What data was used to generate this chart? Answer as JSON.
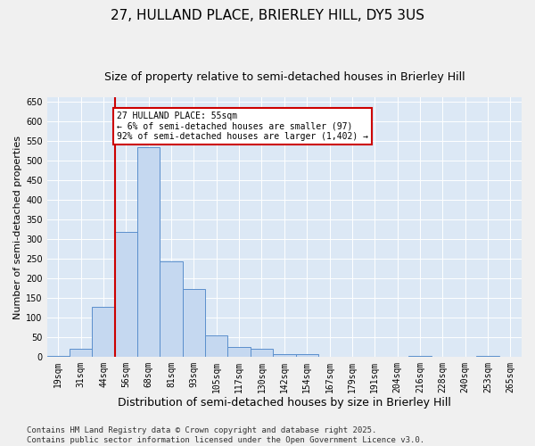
{
  "title1": "27, HULLAND PLACE, BRIERLEY HILL, DY5 3US",
  "title2": "Size of property relative to semi-detached houses in Brierley Hill",
  "xlabel": "Distribution of semi-detached houses by size in Brierley Hill",
  "ylabel": "Number of semi-detached properties",
  "categories": [
    "19sqm",
    "31sqm",
    "44sqm",
    "56sqm",
    "68sqm",
    "81sqm",
    "93sqm",
    "105sqm",
    "117sqm",
    "130sqm",
    "142sqm",
    "154sqm",
    "167sqm",
    "179sqm",
    "191sqm",
    "204sqm",
    "216sqm",
    "228sqm",
    "240sqm",
    "253sqm",
    "265sqm"
  ],
  "values": [
    3,
    20,
    128,
    318,
    533,
    243,
    172,
    55,
    26,
    20,
    8,
    8,
    0,
    0,
    0,
    0,
    2,
    0,
    0,
    2,
    0
  ],
  "bar_color": "#c5d8f0",
  "bar_edge_color": "#5b8fcc",
  "vline_color": "#cc0000",
  "annotation_text": "27 HULLAND PLACE: 55sqm\n← 6% of semi-detached houses are smaller (97)\n92% of semi-detached houses are larger (1,402) →",
  "annotation_box_color": "#ffffff",
  "annotation_box_edge": "#cc0000",
  "ylim": [
    0,
    660
  ],
  "yticks": [
    0,
    50,
    100,
    150,
    200,
    250,
    300,
    350,
    400,
    450,
    500,
    550,
    600,
    650
  ],
  "background_color": "#dce8f5",
  "fig_background": "#f0f0f0",
  "footer": "Contains HM Land Registry data © Crown copyright and database right 2025.\nContains public sector information licensed under the Open Government Licence v3.0.",
  "title1_fontsize": 11,
  "title2_fontsize": 9,
  "xlabel_fontsize": 9,
  "ylabel_fontsize": 8,
  "tick_fontsize": 7,
  "footer_fontsize": 6.5
}
